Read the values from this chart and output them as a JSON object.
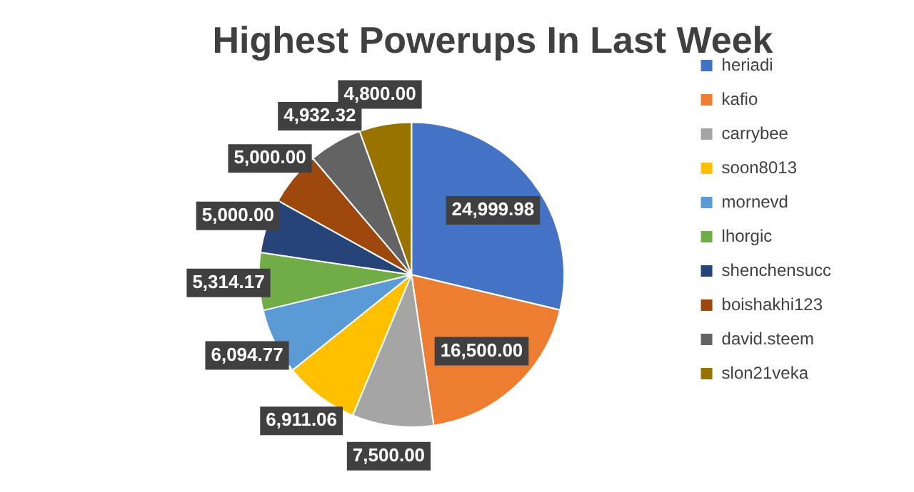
{
  "chart_data": {
    "type": "pie",
    "title": "Highest Powerups In Last Week",
    "categories": [
      "heriadi",
      "kafio",
      "carrybee",
      "soon8013",
      "mornevd",
      "lhorgic",
      "shenchensucc",
      "boishakhi123",
      "david.steem",
      "slon21veka"
    ],
    "values": [
      24999.98,
      16500,
      7500,
      6911.06,
      6094.77,
      5314.17,
      5000,
      5000,
      4932.32,
      4800
    ],
    "value_labels": [
      "24,999.98",
      "16,500.00",
      "7,500.00",
      "6,911.06",
      "6,094.77",
      "5,314.17",
      "5,000.00",
      "5,000.00",
      "4,932.32",
      "4,800.00"
    ],
    "colors": [
      "#4472c4",
      "#ed7d31",
      "#a5a5a5",
      "#ffc000",
      "#5b9bd5",
      "#70ad47",
      "#264478",
      "#9e480e",
      "#636363",
      "#997300"
    ],
    "legend": "right"
  }
}
